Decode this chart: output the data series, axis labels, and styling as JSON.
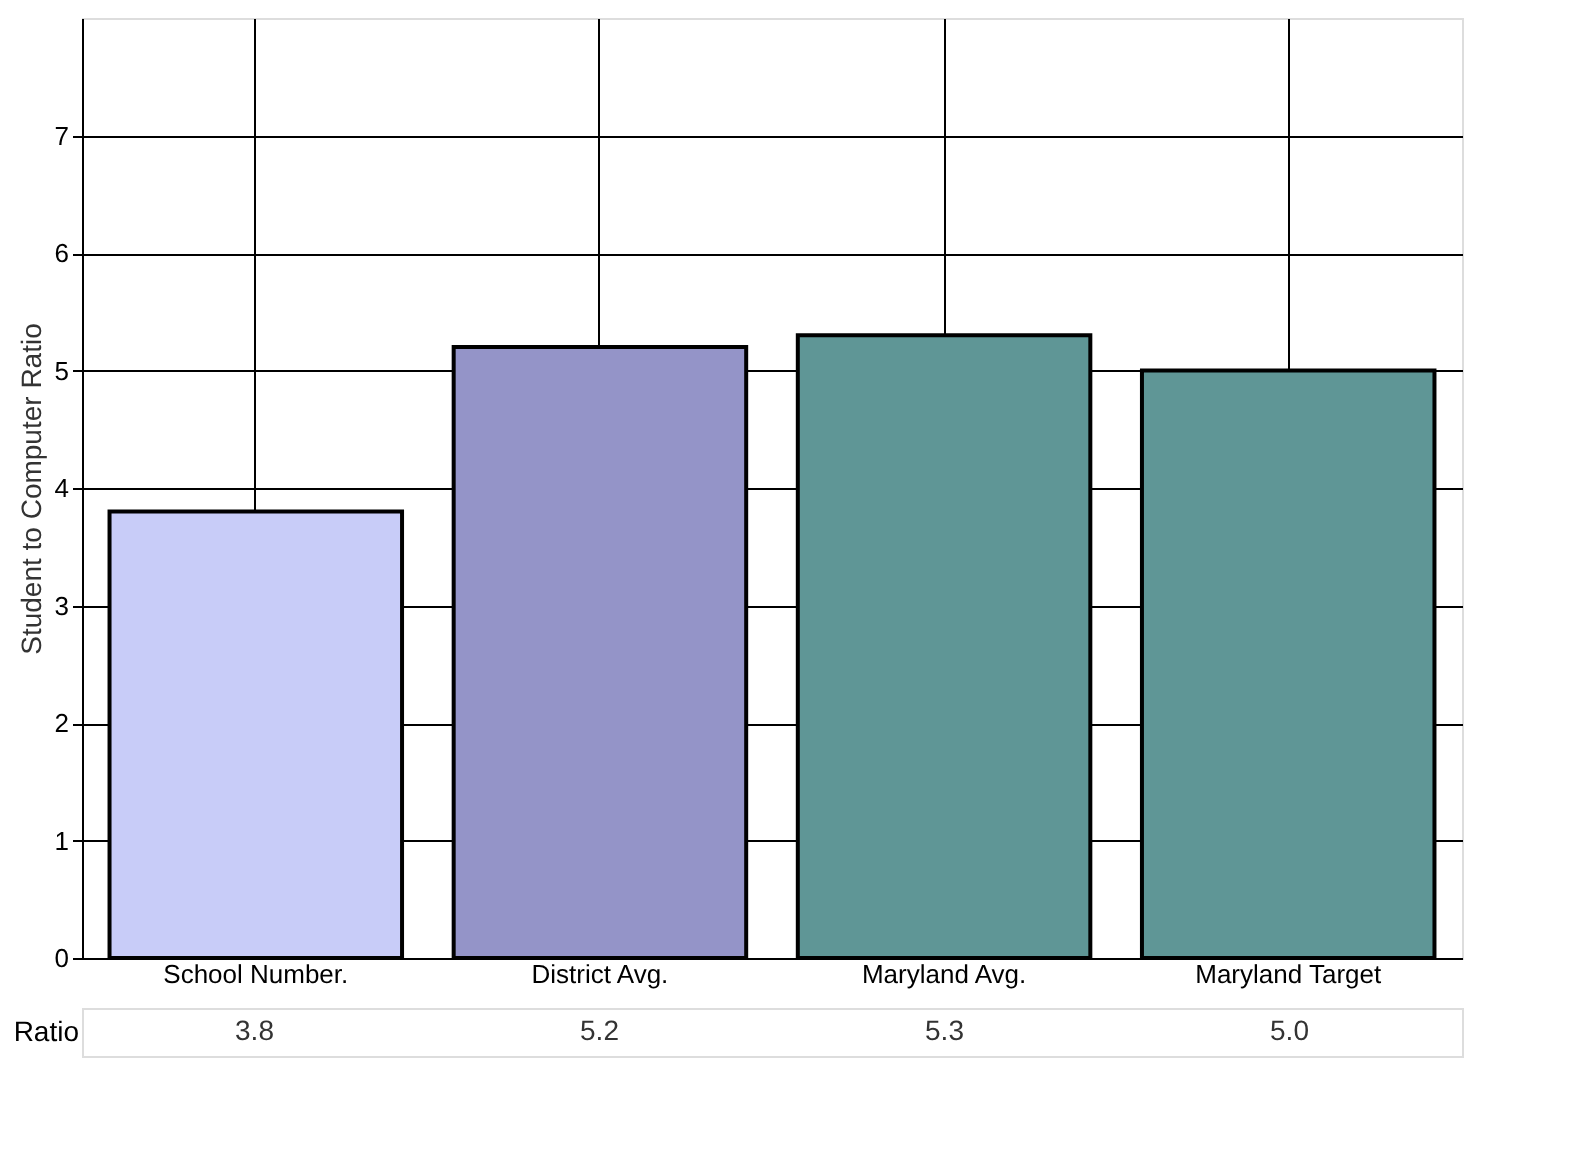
{
  "chart_data": {
    "type": "bar",
    "ylabel": "Student to Computer Ratio",
    "categories": [
      "School Number.",
      "District Avg.",
      "Maryland Avg.",
      "Maryland Target"
    ],
    "series": [
      {
        "name": "Ratio",
        "values": [
          3.8,
          5.2,
          5.3,
          5.0
        ],
        "value_labels": [
          "3.8",
          "5.2",
          "5.3",
          "5.0"
        ]
      }
    ],
    "colors": [
      "#c8ccf8",
      "#9494c8",
      "#5f9696",
      "#5f9696"
    ],
    "ylim": [
      0,
      8
    ],
    "yticks": [
      0,
      1,
      2,
      3,
      4,
      5,
      6,
      7
    ],
    "grid": true
  }
}
